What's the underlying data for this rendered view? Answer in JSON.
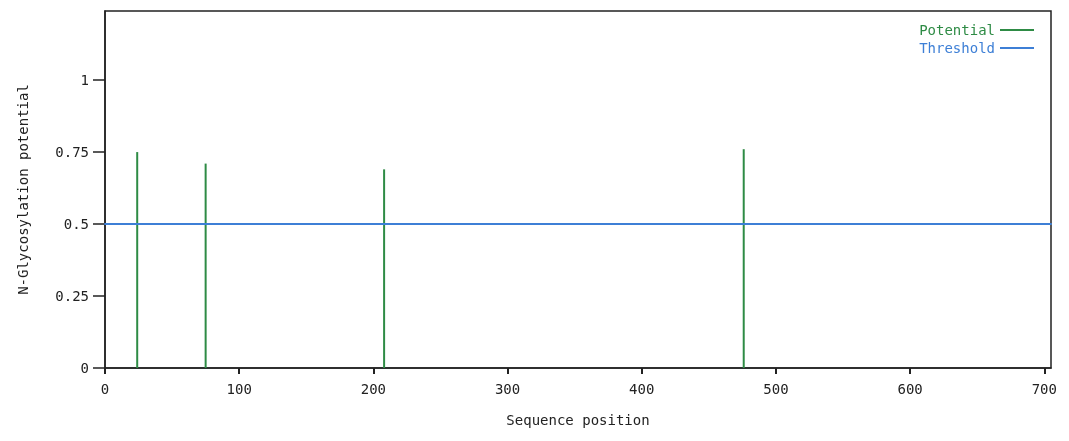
{
  "chart_data": {
    "type": "bar",
    "xlabel": "Sequence position",
    "ylabel": "N-Glycosylation potential",
    "series": [
      {
        "name": "Potential",
        "color": "#2e8b45",
        "x": [
          24,
          75,
          208,
          476
        ],
        "values": [
          0.75,
          0.71,
          0.69,
          0.76
        ]
      },
      {
        "name": "Threshold",
        "type": "line",
        "color": "#3d7fd6",
        "x": [
          0,
          705
        ],
        "values": [
          0.5,
          0.5
        ]
      }
    ],
    "xlim": [
      0,
      705
    ],
    "xticks": [
      0,
      100,
      200,
      300,
      400,
      500,
      600,
      700
    ],
    "ylim": [
      0,
      1.24
    ],
    "yticks": [
      0,
      0.25,
      0.5,
      0.75,
      1
    ],
    "grid": false,
    "legend": "top right",
    "marker": "none"
  }
}
